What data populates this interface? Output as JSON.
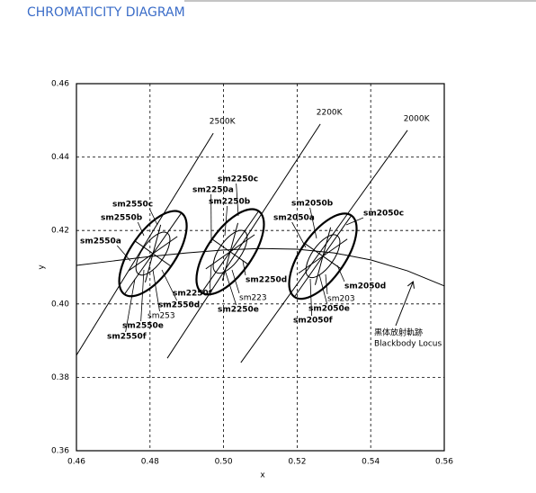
{
  "chart_data": {
    "type": "chromaticity",
    "title": "CHROMATICITY DIAGRAM",
    "xlabel": "x",
    "ylabel": "y",
    "xlim": [
      0.46,
      0.56
    ],
    "ylim": [
      0.36,
      0.46
    ],
    "xticks": [
      0.46,
      0.48,
      {
        "value": 0.5,
        "label": "0.50"
      },
      0.52,
      0.54,
      0.56
    ],
    "yticks": [
      0.36,
      0.38,
      {
        "value": 0.4,
        "label": "0.40"
      },
      0.42,
      0.44,
      0.46
    ],
    "grid": true,
    "locus": {
      "name": "黒体放射軌跡",
      "name_en": "Blackbody Locus",
      "x": [
        0.46,
        0.47,
        0.48,
        0.49,
        0.5,
        0.51,
        0.52,
        0.53,
        0.54,
        0.55,
        0.56
      ],
      "y": [
        0.4105,
        0.4117,
        0.4129,
        0.4139,
        0.4147,
        0.4151,
        0.4149,
        0.4139,
        0.412,
        0.409,
        0.4049
      ]
    },
    "isotherms": [
      {
        "label": "2500K",
        "x": [
          0.46,
          0.4972
        ],
        "y": [
          0.386,
          0.4465
        ]
      },
      {
        "label": "2200K",
        "x": [
          0.4847,
          0.5263
        ],
        "y": [
          0.3852,
          0.449
        ]
      },
      {
        "label": "2000K",
        "x": [
          0.5047,
          0.55
        ],
        "y": [
          0.384,
          0.4473
        ]
      }
    ],
    "ellipses": [
      {
        "center_x": 0.4808,
        "center_y": 0.4137,
        "semi_major": 0.0135,
        "semi_minor": 0.006,
        "inner_semi_major": 0.0068,
        "inner_semi_minor": 0.003,
        "angle": 55,
        "samples": [
          "sm2550a",
          "sm2550b",
          "sm2550c",
          "sm2550d",
          "sm2550e",
          "sm2550f",
          "sm253"
        ]
      },
      {
        "center_x": 0.5018,
        "center_y": 0.4142,
        "semi_major": 0.0135,
        "semi_minor": 0.006,
        "inner_semi_major": 0.0068,
        "inner_semi_minor": 0.003,
        "angle": 55,
        "samples": [
          "sm2250a",
          "sm2250b",
          "sm2250c",
          "sm2250d",
          "sm2250e",
          "sm2250f",
          "sm223"
        ]
      },
      {
        "center_x": 0.527,
        "center_y": 0.413,
        "semi_major": 0.0135,
        "semi_minor": 0.006,
        "inner_semi_major": 0.0068,
        "inner_semi_minor": 0.003,
        "angle": 55,
        "samples": [
          "sm2050a",
          "sm2050b",
          "sm2050c",
          "sm2050d",
          "sm2050e",
          "sm2050f",
          "sm203"
        ]
      }
    ]
  }
}
